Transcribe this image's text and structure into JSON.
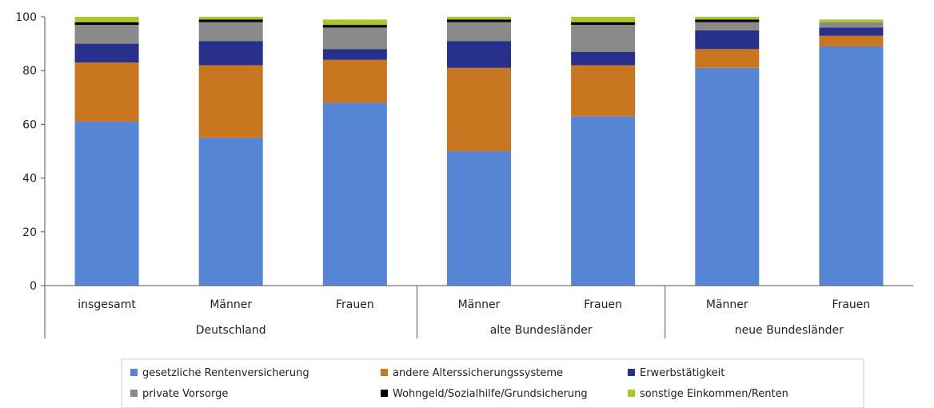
{
  "chart_data": {
    "type": "bar",
    "stacked": true,
    "title": "",
    "xlabel": "",
    "ylabel": "",
    "ylim": [
      0,
      100
    ],
    "yticks": [
      0,
      20,
      40,
      60,
      80,
      100
    ],
    "grid": false,
    "legend_position": "bottom",
    "categories": [
      "insgesamt",
      "Männer",
      "Frauen",
      "Männer",
      "Frauen",
      "Männer",
      "Frauen"
    ],
    "groups": [
      {
        "label": "Deutschland",
        "categories": 3
      },
      {
        "label": "alte Bundesländer",
        "categories": 2
      },
      {
        "label": "neue Bundesländer",
        "categories": 2
      }
    ],
    "series": [
      {
        "name": "gesetzliche Rentenversicherung",
        "color": "#5585D4",
        "values": [
          61,
          55,
          68,
          50,
          63,
          81,
          89
        ]
      },
      {
        "name": "andere Alterssicherungssysteme",
        "color": "#C87620",
        "values": [
          22,
          27,
          16,
          31,
          19,
          7,
          4
        ]
      },
      {
        "name": "Erwerbstätigkeit",
        "color": "#27308A",
        "values": [
          7,
          9,
          4,
          10,
          5,
          7,
          3
        ]
      },
      {
        "name": "private Vorsorge",
        "color": "#8A8A8A",
        "values": [
          7,
          7,
          8,
          7,
          10,
          3,
          2
        ]
      },
      {
        "name": "Wohngeld/Sozialhilfe/Grundsicherung",
        "color": "#000000",
        "values": [
          1,
          1,
          1,
          1,
          1,
          1,
          0
        ]
      },
      {
        "name": "sonstige Einkommen/Renten",
        "color": "#A8C82A",
        "values": [
          2,
          1,
          2,
          1,
          2,
          1,
          1
        ]
      }
    ]
  }
}
